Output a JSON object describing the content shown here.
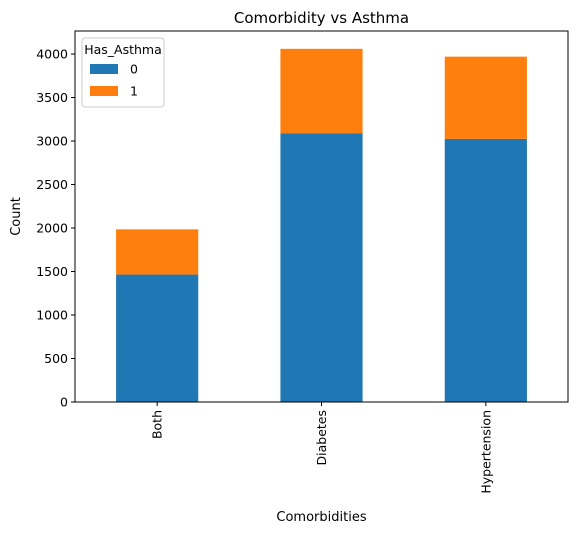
{
  "chart_data": {
    "type": "bar",
    "stacked": true,
    "title": "Comorbidity vs Asthma",
    "xlabel": "Comorbidities",
    "ylabel": "Count",
    "categories": [
      "Both",
      "Diabetes",
      "Hypertension"
    ],
    "series": [
      {
        "name": "0",
        "values": [
          1465,
          3090,
          3025
        ],
        "color": "#1f77b4"
      },
      {
        "name": "1",
        "values": [
          520,
          970,
          945
        ],
        "color": "#ff7f0e"
      }
    ],
    "ylim": [
      0,
      4265
    ],
    "yticks": [
      0,
      500,
      1000,
      1500,
      2000,
      2500,
      3000,
      3500,
      4000
    ],
    "legend": {
      "title": "Has_Asthma",
      "position": "top-left"
    },
    "grid": false
  }
}
